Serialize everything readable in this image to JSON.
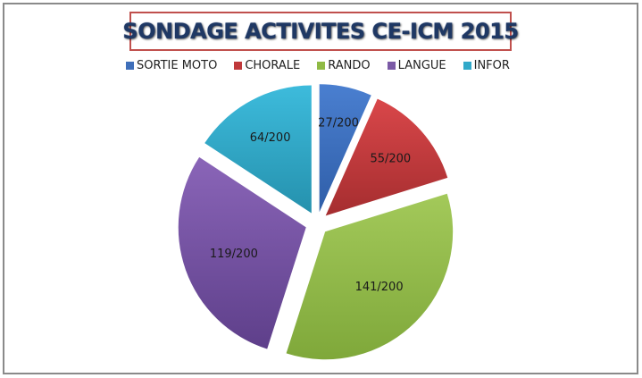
{
  "chart_data": {
    "type": "pie",
    "title": "SONDAGE ACTIVITES CE-ICM 2015",
    "categories": [
      "SORTIE MOTO",
      "CHORALE",
      "RANDO",
      "LANGUE",
      "INFOR"
    ],
    "values": [
      27,
      55,
      141,
      119,
      64
    ],
    "data_labels": [
      "27/200",
      "55/200",
      "141/200",
      "119/200",
      "64/200"
    ],
    "colors": [
      "#4472c4",
      "#c0504d",
      "#9bbb59",
      "#8064a2",
      "#4bacc6"
    ],
    "legend_position": "top",
    "exploded": true
  },
  "title": "SONDAGE ACTIVITES CE-ICM 2015",
  "legend": [
    {
      "label": "SORTIE MOTO",
      "color": "#3f6fba"
    },
    {
      "label": "CHORALE",
      "color": "#c0393b"
    },
    {
      "label": "RANDO",
      "color": "#8fba45"
    },
    {
      "label": "LANGUE",
      "color": "#7b5aa6"
    },
    {
      "label": "INFOR",
      "color": "#31a9c9"
    }
  ]
}
